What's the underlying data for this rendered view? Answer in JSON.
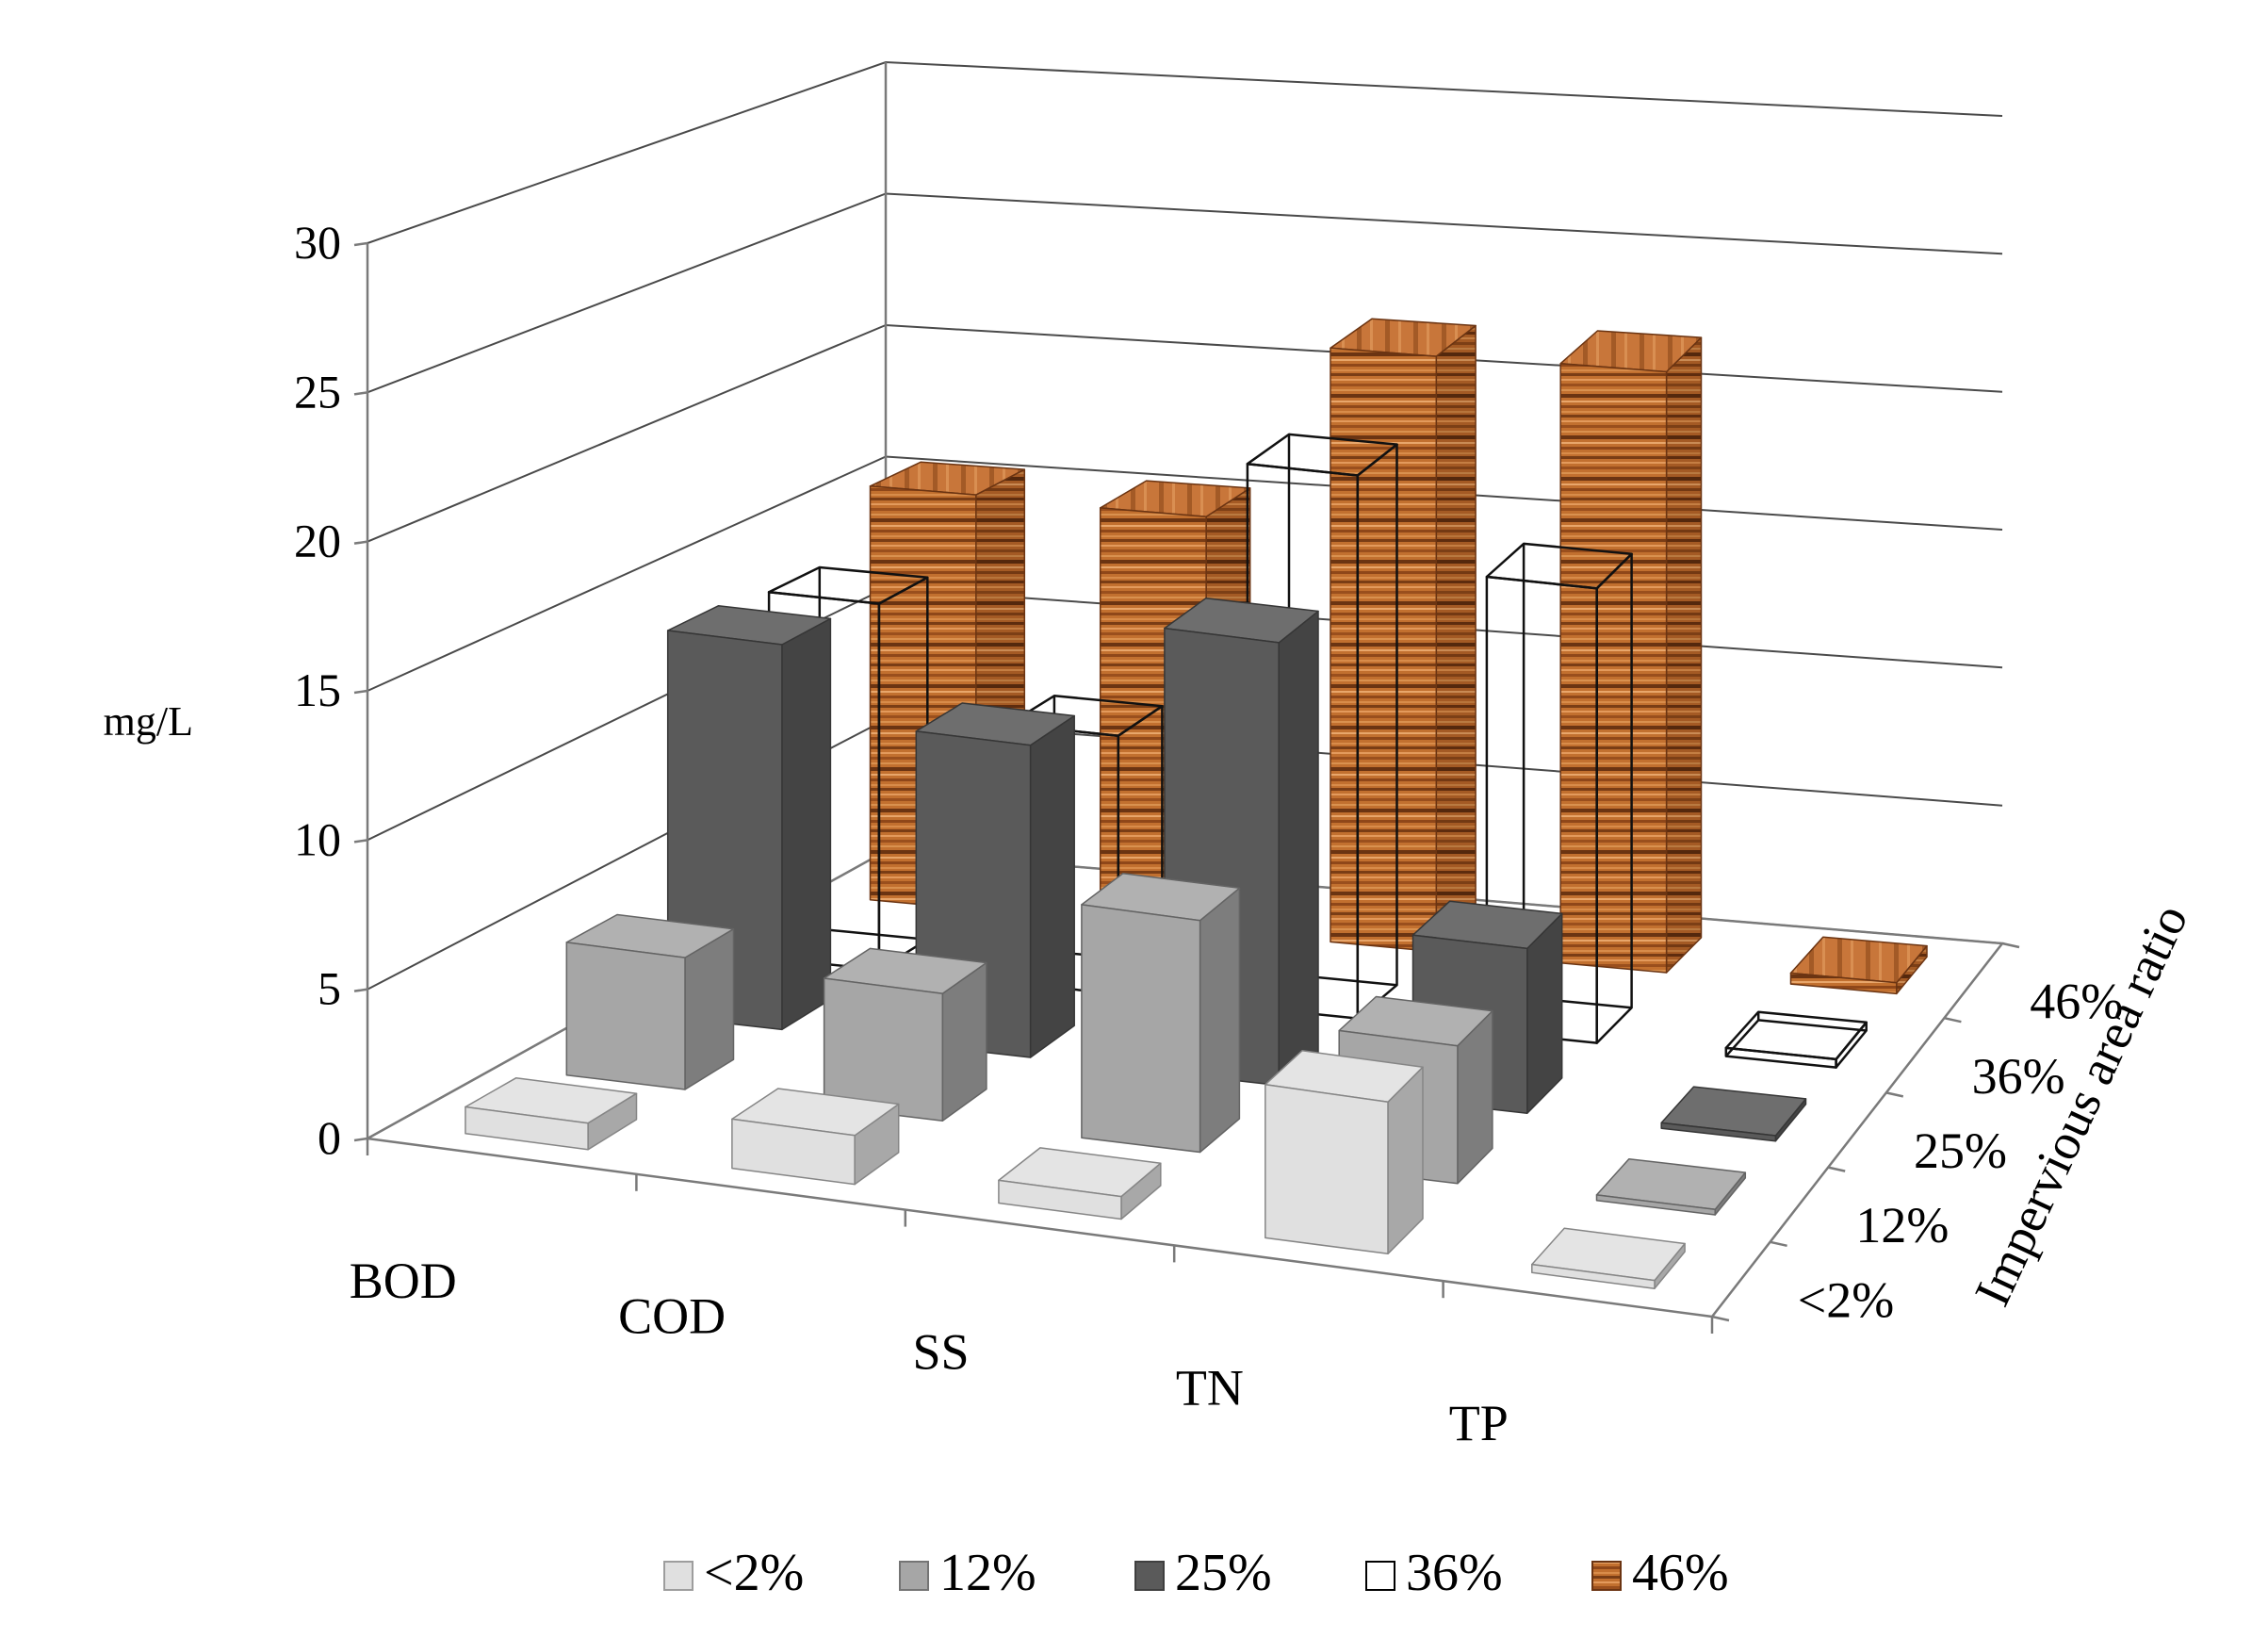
{
  "chart_data": {
    "type": "bar",
    "subtype": "3d-clustered-column",
    "categories": [
      "BOD",
      "COD",
      "SS",
      "TN",
      "TP"
    ],
    "ylabel": "mg/L",
    "depth_axis_label": "Impervious area ratio",
    "ylim": [
      0,
      30
    ],
    "yticks": [
      "0",
      "5",
      "10",
      "15",
      "20",
      "25",
      "30"
    ],
    "grid": true,
    "legend_position": "bottom",
    "series": [
      {
        "name": "<2%",
        "color": "#e0e0e0",
        "values": [
          0.9,
          1.7,
          0.8,
          5.5,
          0.3
        ]
      },
      {
        "name": "12%",
        "color": "#a6a6a6",
        "values": [
          4.6,
          4.5,
          8.3,
          5.0,
          0.2
        ]
      },
      {
        "name": "25%",
        "color": "#5a5a5a",
        "values": [
          13.7,
          11.2,
          16.0,
          6.0,
          0.2
        ]
      },
      {
        "name": "36%",
        "color": "#ffffff",
        "values": [
          13.3,
          9.4,
          19.8,
          16.6,
          0.3
        ]
      },
      {
        "name": "46%",
        "color": "#b8652b",
        "values": [
          15.4,
          15.3,
          21.9,
          22.0,
          0.4
        ]
      }
    ]
  }
}
